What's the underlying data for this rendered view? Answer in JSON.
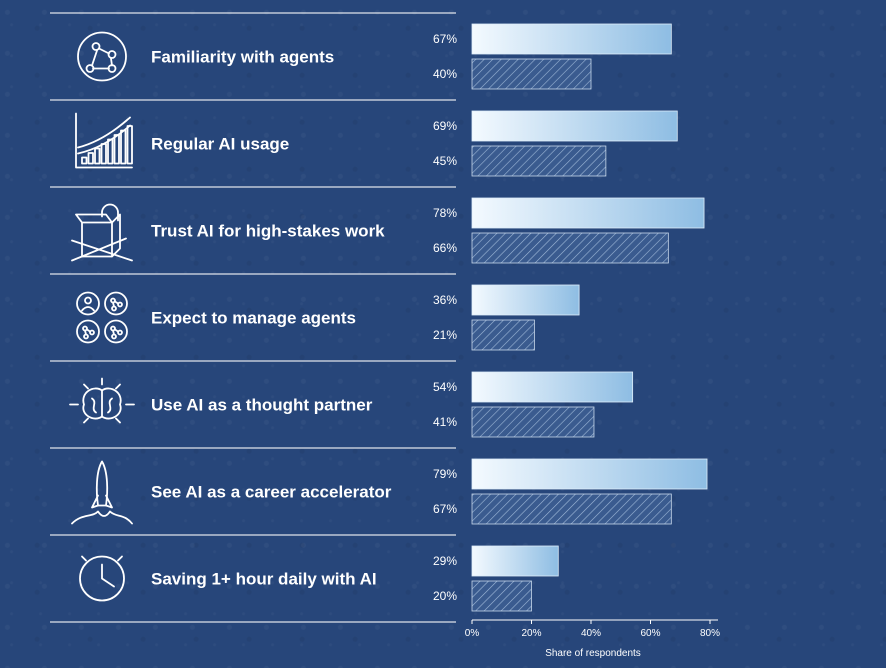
{
  "chart_data": {
    "type": "bar",
    "orientation": "horizontal",
    "categories": [
      "Familiarity with agents",
      "Regular AI usage",
      "Trust AI for high-stakes work",
      "Expect to manage agents",
      "Use AI as a thought partner",
      "See AI as a career accelerator",
      "Saving 1+ hour daily with AI"
    ],
    "series": [
      {
        "values": [
          67,
          69,
          78,
          36,
          54,
          79,
          29
        ],
        "style": "gradient"
      },
      {
        "values": [
          40,
          45,
          66,
          21,
          41,
          67,
          20
        ],
        "style": "hatched"
      }
    ],
    "value_labels": [
      [
        "67%",
        "69%",
        "78%",
        "36%",
        "54%",
        "79%",
        "29%"
      ],
      [
        "40%",
        "45%",
        "66%",
        "21%",
        "41%",
        "67%",
        "20%"
      ]
    ],
    "icons": [
      "network-icon",
      "growth-chart-icon",
      "unlocked-box-icon",
      "agents-grid-icon",
      "brain-icon",
      "rocket-icon",
      "clock-icon"
    ],
    "xlabel": "Share of respondents",
    "xlim": [
      0,
      80
    ],
    "xticks": [
      "0%",
      "20%",
      "40%",
      "60%",
      "80%"
    ],
    "grid": false,
    "colors": {
      "background": "#27467a",
      "bar_gradient_start": "#ffffff",
      "bar_gradient_end": "#8ebde3",
      "hatch_bar": "#3a5b8f",
      "text": "#ffffff"
    }
  }
}
